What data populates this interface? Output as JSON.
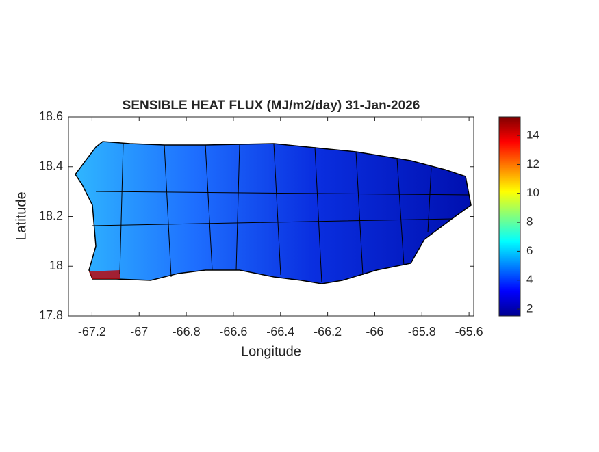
{
  "chart_data": {
    "type": "map",
    "title": "SENSIBLE HEAT FLUX (MJ/m2/day) 31-Jan-2026",
    "x_label": "Longitude",
    "y_label": "Latitude",
    "xlim": [
      -67.3,
      -65.58
    ],
    "xticks": [
      -67.2,
      -67,
      -66.8,
      -66.6,
      -66.4,
      -66.2,
      -66,
      -65.8,
      -65.6
    ],
    "ylim": [
      17.8,
      18.6
    ],
    "yticks": [
      17.8,
      18,
      18.2,
      18.4,
      18.6
    ],
    "colormap": "jet",
    "clim": [
      1.53,
      15.28
    ],
    "cticks": [
      2,
      4,
      6,
      8,
      10,
      12,
      14
    ]
  }
}
